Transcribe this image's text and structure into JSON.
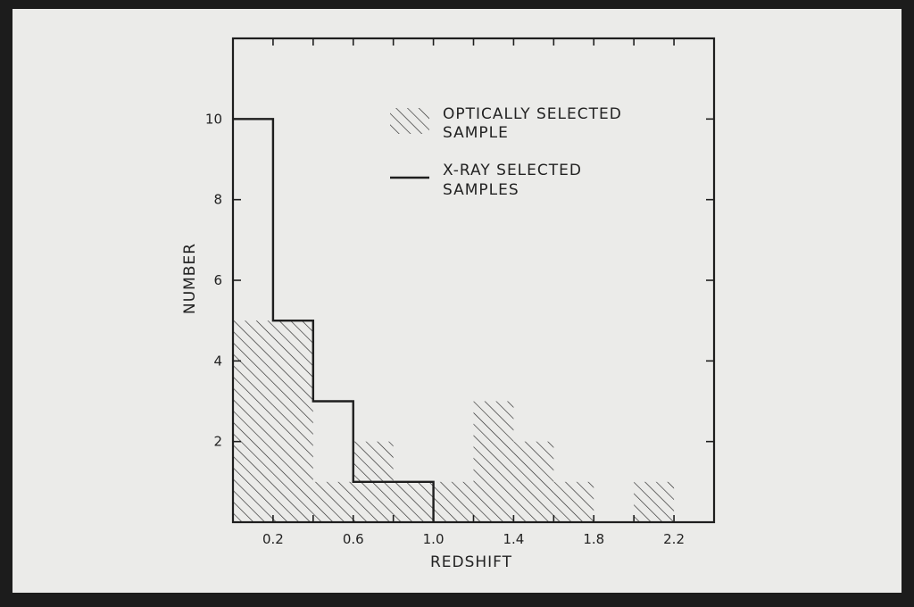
{
  "chart_data": {
    "type": "bar",
    "xlabel": "REDSHIFT",
    "ylabel": "NUMBER",
    "xlim": [
      0.0,
      2.4
    ],
    "ylim": [
      0,
      12
    ],
    "x_ticks": [
      "0.2",
      "0.6",
      "1.0",
      "1.4",
      "1.8",
      "2.2"
    ],
    "x_tick_values": [
      0.2,
      0.6,
      1.0,
      1.4,
      1.8,
      2.2
    ],
    "y_ticks": [
      "2",
      "4",
      "6",
      "8",
      "10"
    ],
    "y_tick_values": [
      2,
      4,
      6,
      8,
      10
    ],
    "bin_edges": [
      0.0,
      0.2,
      0.4,
      0.6,
      0.8,
      1.0,
      1.2,
      1.4,
      1.6,
      1.8,
      2.0,
      2.2
    ],
    "series": [
      {
        "name": "OPTICALLY SELECTED SAMPLE",
        "style": "hatched",
        "values": [
          5,
          5,
          1,
          2,
          1,
          1,
          3,
          2,
          1,
          0,
          1
        ]
      },
      {
        "name": "X-RAY SELECTED SAMPLES",
        "style": "outline",
        "values": [
          10,
          5,
          3,
          1,
          1
        ]
      }
    ],
    "legend": {
      "placement": "top-center",
      "entries": [
        {
          "line1": "OPTICALLY SELECTED",
          "line2": "SAMPLE"
        },
        {
          "line1": "X-RAY SELECTED",
          "line2": "SAMPLES"
        }
      ]
    },
    "grid": false,
    "colors": {
      "ink": "#1e1e1e",
      "paper": "#ebebe9"
    }
  }
}
